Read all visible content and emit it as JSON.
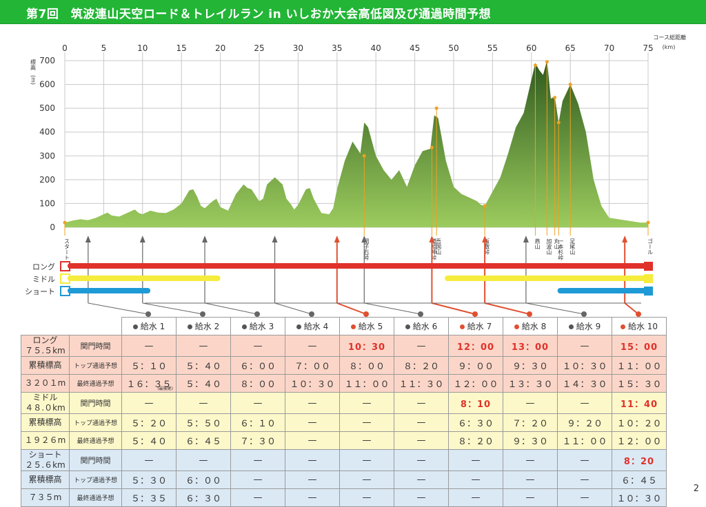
{
  "title": "第7回　筑波連山天空ロード＆トレイルラン in いしおか大会高低図及び通過時間予想",
  "page_number": "2",
  "colors": {
    "long": "#e0312a",
    "middle": "#f5ec3c",
    "short": "#1e9ad6",
    "title_bg": "#22b536",
    "mountain_top": "#2f5a1e",
    "mountain_bottom": "#9ccc5e",
    "marker": "#f0a020"
  },
  "chart_data": {
    "type": "area",
    "x_unit_label": "コース総距離",
    "x_unit": "(km)",
    "y_unit_label": "標高",
    "y_unit": "(m)",
    "x_ticks": [
      0,
      5,
      10,
      15,
      20,
      25,
      30,
      35,
      40,
      45,
      50,
      55,
      60,
      65,
      70,
      75
    ],
    "y_ticks": [
      0,
      100,
      200,
      300,
      400,
      500,
      600,
      700
    ],
    "xlim": [
      0,
      75
    ],
    "ylim": [
      0,
      720
    ],
    "profile": [
      [
        0,
        20
      ],
      [
        1,
        28
      ],
      [
        2,
        34
      ],
      [
        3,
        30
      ],
      [
        4,
        40
      ],
      [
        5,
        55
      ],
      [
        5.5,
        62
      ],
      [
        6,
        50
      ],
      [
        7,
        45
      ],
      [
        8,
        60
      ],
      [
        9,
        75
      ],
      [
        9.5,
        60
      ],
      [
        10,
        55
      ],
      [
        11,
        70
      ],
      [
        12,
        62
      ],
      [
        13,
        60
      ],
      [
        14,
        75
      ],
      [
        15,
        100
      ],
      [
        16,
        155
      ],
      [
        16.5,
        160
      ],
      [
        17,
        130
      ],
      [
        17.5,
        90
      ],
      [
        18,
        80
      ],
      [
        19,
        110
      ],
      [
        19.5,
        120
      ],
      [
        20,
        85
      ],
      [
        21,
        70
      ],
      [
        22,
        140
      ],
      [
        23,
        180
      ],
      [
        23.5,
        165
      ],
      [
        24,
        160
      ],
      [
        25,
        110
      ],
      [
        25.5,
        120
      ],
      [
        26,
        180
      ],
      [
        27,
        210
      ],
      [
        28,
        180
      ],
      [
        28.5,
        120
      ],
      [
        29,
        100
      ],
      [
        29.5,
        75
      ],
      [
        30,
        95
      ],
      [
        31,
        160
      ],
      [
        31.5,
        165
      ],
      [
        32,
        120
      ],
      [
        32.5,
        90
      ],
      [
        33,
        60
      ],
      [
        34,
        55
      ],
      [
        34.5,
        80
      ],
      [
        35,
        160
      ],
      [
        36,
        280
      ],
      [
        37,
        360
      ],
      [
        38,
        310
      ],
      [
        38.5,
        440
      ],
      [
        39,
        420
      ],
      [
        40,
        300
      ],
      [
        41,
        240
      ],
      [
        42,
        200
      ],
      [
        43,
        240
      ],
      [
        44,
        170
      ],
      [
        45,
        260
      ],
      [
        46,
        320
      ],
      [
        47,
        330
      ],
      [
        47.5,
        470
      ],
      [
        48,
        460
      ],
      [
        49,
        280
      ],
      [
        50,
        170
      ],
      [
        51,
        140
      ],
      [
        52,
        125
      ],
      [
        53,
        110
      ],
      [
        53.5,
        95
      ],
      [
        54,
        90
      ],
      [
        55,
        150
      ],
      [
        56,
        210
      ],
      [
        57,
        310
      ],
      [
        58,
        420
      ],
      [
        59,
        480
      ],
      [
        60,
        620
      ],
      [
        60.5,
        690
      ],
      [
        61,
        660
      ],
      [
        61.5,
        640
      ],
      [
        62,
        700
      ],
      [
        62.5,
        540
      ],
      [
        63,
        550
      ],
      [
        63.5,
        440
      ],
      [
        64,
        530
      ],
      [
        65,
        600
      ],
      [
        66,
        520
      ],
      [
        67,
        400
      ],
      [
        68,
        200
      ],
      [
        69,
        90
      ],
      [
        70,
        40
      ],
      [
        72,
        30
      ],
      [
        74,
        20
      ],
      [
        75,
        20
      ]
    ],
    "peaks": [
      {
        "name": "団子石峠",
        "km": 38.5,
        "elev": 300
      },
      {
        "name": "道祖神峠",
        "km": 47.2,
        "elev": 335
      },
      {
        "name": "吾国山",
        "km": 47.8,
        "elev": 500
      },
      {
        "name": "板敷峠",
        "km": 54,
        "elev": 90
      },
      {
        "name": "燕山",
        "km": 60.5,
        "elev": 680
      },
      {
        "name": "加波山",
        "km": 62,
        "elev": 695
      },
      {
        "name": "丸山",
        "km": 63,
        "elev": 545
      },
      {
        "name": "一本杉峠",
        "km": 63.5,
        "elev": 440
      },
      {
        "name": "足尾山",
        "km": 65,
        "elev": 600
      }
    ],
    "start_label": "スタート",
    "goal_label": "ゴール",
    "aid_km": [
      3,
      10,
      18,
      27,
      35,
      38.5,
      47.2,
      54,
      59.3,
      72
    ],
    "course_bars": [
      {
        "name": "ロング",
        "segments": [
          [
            0,
            75
          ]
        ]
      },
      {
        "name": "ミドル",
        "segments": [
          [
            0,
            20
          ],
          [
            48.5,
            75
          ]
        ]
      },
      {
        "name": "ショート",
        "segments": [
          [
            0,
            11
          ],
          [
            63,
            75
          ]
        ]
      }
    ]
  },
  "table": {
    "aid_stations": [
      "給水 1",
      "給水 2",
      "給水 3",
      "給水 4",
      "給水 5",
      "給水 6",
      "給水 7",
      "給水 8",
      "給水 9",
      "給水 10"
    ],
    "row_labels": {
      "cutoff": "関門時間",
      "top": "トップ通過予想",
      "last": "最終通過予想"
    },
    "last_note": "(最後尾)",
    "courses": [
      {
        "name": "ロング",
        "distance": "７５.５km",
        "gain_label": "累積標高",
        "gain": "３２０１m",
        "cutoff": [
          "—",
          "—",
          "—",
          "—",
          "10：30",
          "—",
          "12：00",
          "13：00",
          "—",
          "15：00"
        ],
        "top": [
          "５：１０",
          "５：４０",
          "６：００",
          "７：００",
          "８：００",
          "８：２０",
          "９：００",
          "９：３０",
          "１０：３０",
          "１１：００"
        ],
        "last": [
          "１６：３５",
          "５：４０",
          "８：００",
          "１０：３０",
          "１１：００",
          "１１：３０",
          "１２：００",
          "１３：３０",
          "１４：３０",
          "１５：３０"
        ]
      },
      {
        "name": "ミドル",
        "distance": "４８.０km",
        "gain_label": "累積標高",
        "gain": "１９２６m",
        "cutoff": [
          "—",
          "—",
          "—",
          "—",
          "—",
          "—",
          "8：10",
          "—",
          "—",
          "11：40"
        ],
        "top": [
          "５：２０",
          "５：５０",
          "６：１０",
          "—",
          "—",
          "—",
          "６：３０",
          "７：２０",
          "９：２０",
          "１０：２０"
        ],
        "last": [
          "５：４０",
          "６：４５",
          "７：３０",
          "—",
          "—",
          "—",
          "８：２０",
          "９：３０",
          "１１：００",
          "１２：００"
        ]
      },
      {
        "name": "ショート",
        "distance": "２５.６km",
        "gain_label": "累積標高",
        "gain": "７３５m",
        "cutoff": [
          "—",
          "—",
          "—",
          "—",
          "—",
          "—",
          "—",
          "—",
          "—",
          "8：20"
        ],
        "top": [
          "５：３０",
          "６：００",
          "—",
          "—",
          "—",
          "—",
          "—",
          "—",
          "—",
          "６：４５"
        ],
        "last": [
          "５：３５",
          "６：３０",
          "—",
          "—",
          "—",
          "—",
          "—",
          "—",
          "—",
          "１０：３０"
        ]
      }
    ]
  }
}
